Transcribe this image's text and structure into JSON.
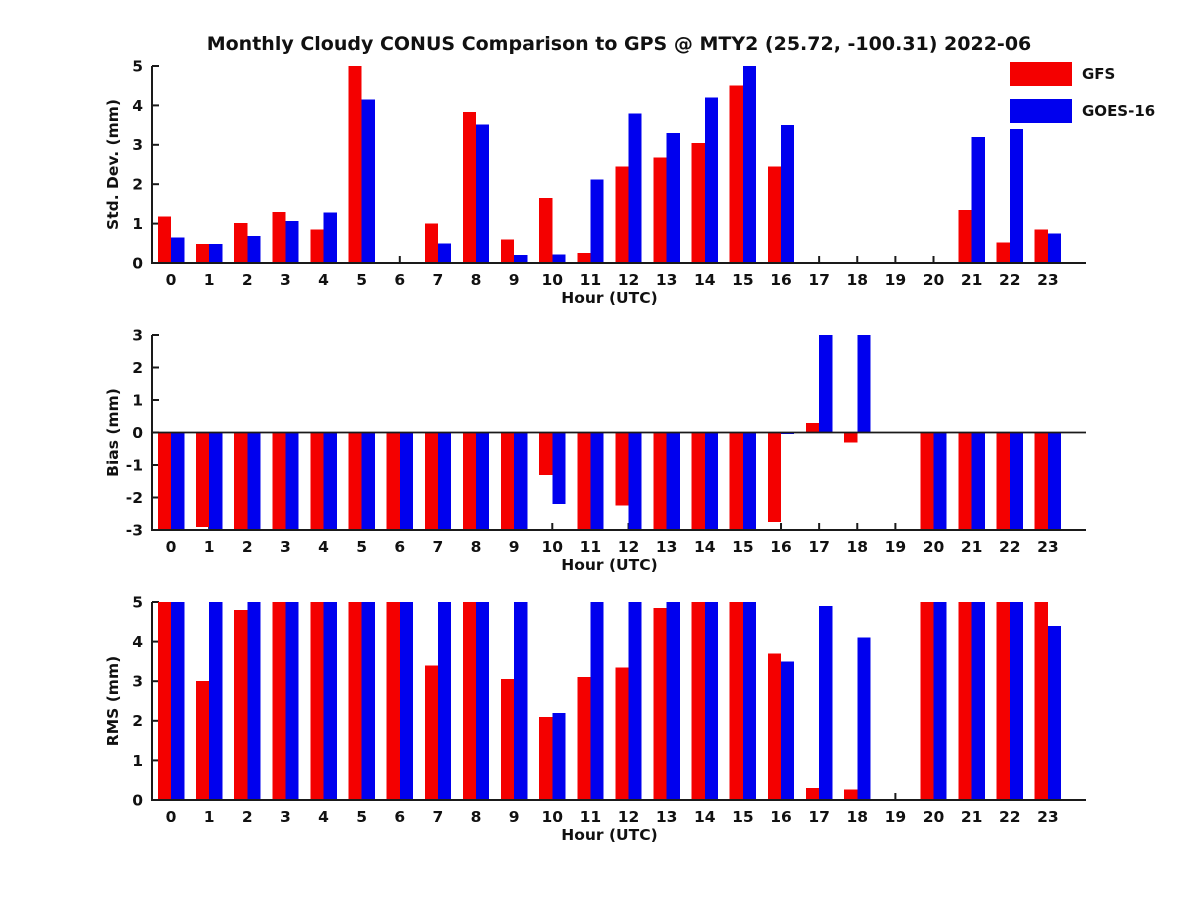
{
  "title": "Monthly Cloudy CONUS Comparison to GPS @ MTY2 (25.72, -100.31) 2022-06",
  "legend": {
    "items": [
      {
        "label": "GFS",
        "color": "#f40000"
      },
      {
        "label": "GOES-16",
        "color": "#0000ee"
      }
    ]
  },
  "colors": {
    "gfs": "#f40000",
    "goes16": "#0000ee",
    "axis": "#1a1a1a",
    "text": "#111111"
  },
  "chart_data": [
    {
      "id": "std_dev",
      "type": "bar",
      "title": "",
      "xlabel": "Hour (UTC)",
      "ylabel": "Std. Dev. (mm)",
      "ylim": [
        0,
        5
      ],
      "yticks": [
        0,
        1,
        2,
        3,
        4,
        5
      ],
      "grid": false,
      "legend_position": "figure-top-right",
      "categories": [
        "0",
        "1",
        "2",
        "3",
        "4",
        "5",
        "6",
        "7",
        "8",
        "9",
        "10",
        "11",
        "12",
        "13",
        "14",
        "15",
        "16",
        "17",
        "18",
        "19",
        "20",
        "21",
        "22",
        "23"
      ],
      "series": [
        {
          "name": "GFS",
          "values": [
            1.18,
            0.48,
            1.02,
            1.3,
            0.85,
            5,
            null,
            1.0,
            3.83,
            0.6,
            1.65,
            0.25,
            2.45,
            2.68,
            3.05,
            4.5,
            2.45,
            null,
            null,
            null,
            null,
            1.35,
            0.52,
            0.85
          ]
        },
        {
          "name": "GOES-16",
          "values": [
            0.65,
            0.48,
            0.68,
            1.07,
            1.28,
            4.15,
            null,
            0.5,
            3.52,
            0.2,
            0.22,
            2.12,
            3.8,
            3.3,
            4.2,
            5,
            3.5,
            null,
            null,
            null,
            null,
            3.2,
            3.4,
            0.75
          ]
        }
      ]
    },
    {
      "id": "bias",
      "type": "bar",
      "title": "",
      "xlabel": "Hour (UTC)",
      "ylabel": "Bias (mm)",
      "ylim": [
        -3,
        3
      ],
      "yticks": [
        -3,
        -2,
        -1,
        0,
        1,
        2,
        3
      ],
      "grid": false,
      "note_values_clipped_at": [
        -3,
        3
      ],
      "categories": [
        "0",
        "1",
        "2",
        "3",
        "4",
        "5",
        "6",
        "7",
        "8",
        "9",
        "10",
        "11",
        "12",
        "13",
        "14",
        "15",
        "16",
        "17",
        "18",
        "19",
        "20",
        "21",
        "22",
        "23"
      ],
      "series": [
        {
          "name": "GFS",
          "values": [
            -3,
            -2.9,
            -3,
            -3,
            -3,
            -3,
            -3,
            -3,
            -3,
            -3,
            -1.3,
            -3,
            -2.25,
            -3,
            -3,
            -3,
            -2.75,
            0.3,
            -0.3,
            null,
            -3,
            -3,
            -3,
            -3
          ]
        },
        {
          "name": "GOES-16",
          "values": [
            -3,
            -3,
            -3,
            -3,
            -3,
            -3,
            -3,
            -3,
            -3,
            -3,
            -2.2,
            -3,
            -3,
            -3,
            -3,
            -3,
            -0.05,
            3,
            3,
            null,
            -3,
            -3,
            -3,
            -3
          ]
        }
      ]
    },
    {
      "id": "rms",
      "type": "bar",
      "title": "",
      "xlabel": "Hour (UTC)",
      "ylabel": "RMS (mm)",
      "ylim": [
        0,
        5
      ],
      "yticks": [
        0,
        1,
        2,
        3,
        4,
        5
      ],
      "grid": false,
      "note_values_clipped_at": [
        0,
        5
      ],
      "categories": [
        "0",
        "1",
        "2",
        "3",
        "4",
        "5",
        "6",
        "7",
        "8",
        "9",
        "10",
        "11",
        "12",
        "13",
        "14",
        "15",
        "16",
        "17",
        "18",
        "19",
        "20",
        "21",
        "22",
        "23"
      ],
      "series": [
        {
          "name": "GFS",
          "values": [
            5,
            3.0,
            4.8,
            5,
            5,
            5,
            5,
            3.4,
            5,
            3.05,
            2.1,
            3.1,
            3.35,
            4.85,
            5,
            5,
            3.7,
            0.3,
            0.27,
            null,
            5,
            5,
            5,
            5
          ]
        },
        {
          "name": "GOES-16",
          "values": [
            5,
            5,
            5,
            5,
            5,
            5,
            5,
            5,
            5,
            5,
            2.2,
            5,
            5,
            5,
            5,
            5,
            3.5,
            4.9,
            4.1,
            null,
            5,
            5,
            5,
            4.4
          ]
        }
      ]
    }
  ]
}
